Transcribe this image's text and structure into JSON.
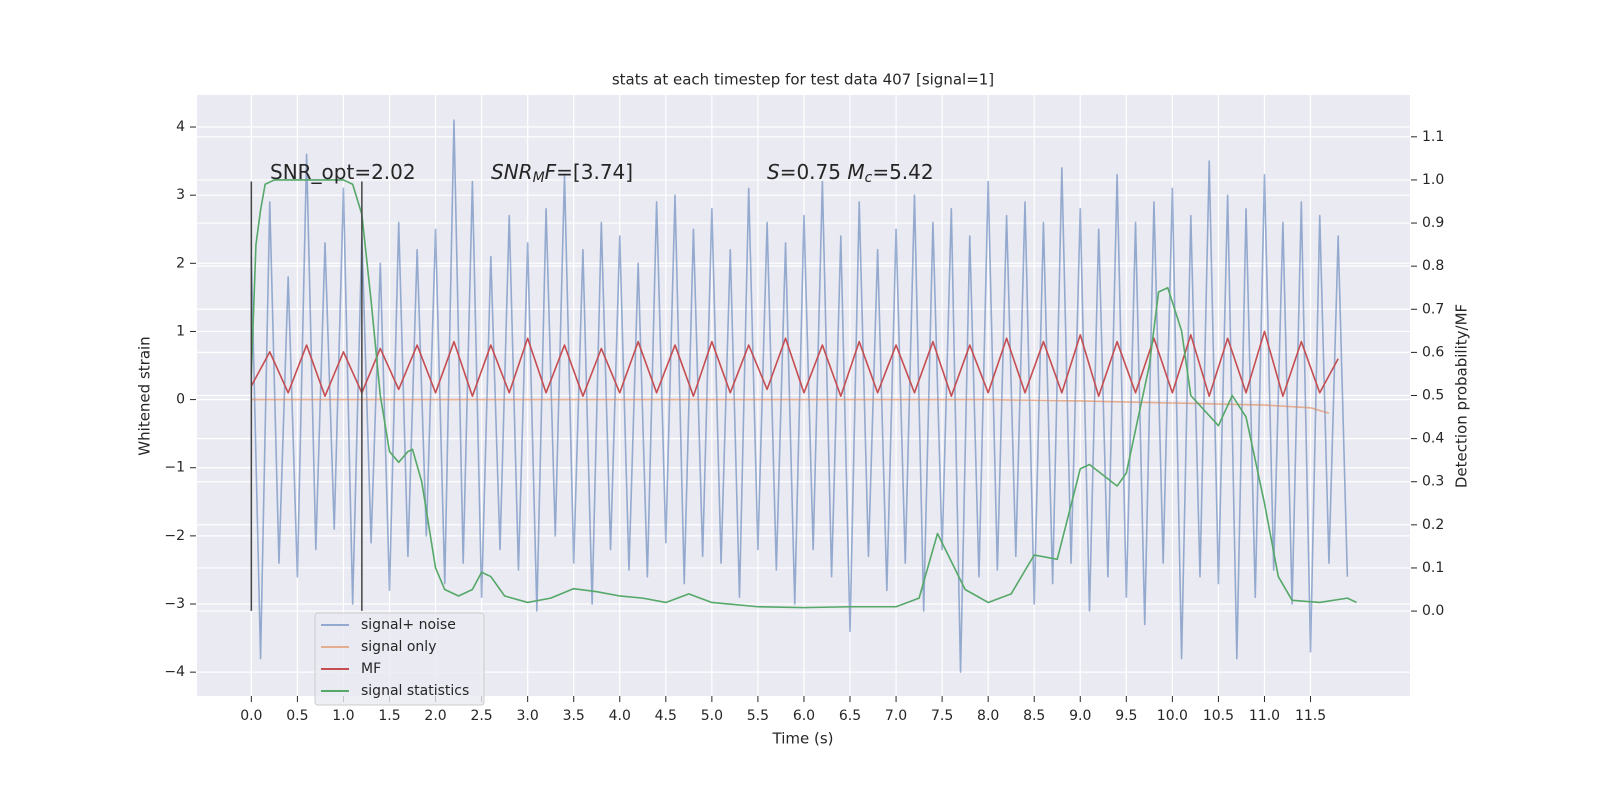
{
  "chart_data": {
    "type": "line",
    "title": "stats at each timestep for test data 407 [signal=1]",
    "xlabel": "Time (s)",
    "ylabel": "Whitened strain",
    "y2label": "Detection probability/MF",
    "xlim": [
      -0.59,
      12.58
    ],
    "ylim": [
      -4.35,
      4.47
    ],
    "y2lim": [
      -0.197,
      1.197
    ],
    "grid": true,
    "legend": "lower left",
    "xticks": [
      {
        "value": 0,
        "label": "0.0"
      },
      {
        "value": 0.5,
        "label": "0.5"
      },
      {
        "value": 1,
        "label": "1.0"
      },
      {
        "value": 1.5,
        "label": "1.5"
      },
      {
        "value": 2,
        "label": "2.0"
      },
      {
        "value": 2.5,
        "label": "2.5"
      },
      {
        "value": 3,
        "label": "3.0"
      },
      {
        "value": 3.5,
        "label": "3.5"
      },
      {
        "value": 4,
        "label": "4.0"
      },
      {
        "value": 4.5,
        "label": "4.5"
      },
      {
        "value": 5,
        "label": "5.0"
      },
      {
        "value": 5.5,
        "label": "5.5"
      },
      {
        "value": 6,
        "label": "6.0"
      },
      {
        "value": 6.5,
        "label": "6.5"
      },
      {
        "value": 7,
        "label": "7.0"
      },
      {
        "value": 7.5,
        "label": "7.5"
      },
      {
        "value": 8,
        "label": "8.0"
      },
      {
        "value": 8.5,
        "label": "8.5"
      },
      {
        "value": 9,
        "label": "9.0"
      },
      {
        "value": 9.5,
        "label": "9.5"
      },
      {
        "value": 10,
        "label": "10.0"
      },
      {
        "value": 10.5,
        "label": "10.5"
      },
      {
        "value": 11,
        "label": "11.0"
      },
      {
        "value": 11.5,
        "label": "11.5"
      }
    ],
    "yticks": [
      {
        "value": -4,
        "label": "−4"
      },
      {
        "value": -3,
        "label": "−3"
      },
      {
        "value": -2,
        "label": "−2"
      },
      {
        "value": -1,
        "label": "−1"
      },
      0,
      1,
      2,
      3,
      4
    ],
    "y2ticks": [
      {
        "value": 0,
        "label": "0.0"
      },
      {
        "value": 0.1,
        "label": "0.1"
      },
      {
        "value": 0.2,
        "label": "0.2"
      },
      {
        "value": 0.3,
        "label": "0.3"
      },
      {
        "value": 0.4,
        "label": "0.4"
      },
      {
        "value": 0.5,
        "label": "0.5"
      },
      {
        "value": 0.6,
        "label": "0.6"
      },
      {
        "value": 0.7,
        "label": "0.7"
      },
      {
        "value": 0.8,
        "label": "0.8"
      },
      {
        "value": 0.9,
        "label": "0.9"
      },
      {
        "value": 1.0,
        "label": "1.0"
      },
      {
        "value": 1.1,
        "label": "1.1"
      }
    ],
    "annotations": [
      [
        {
          "text": "SNR_opt=2.02"
        }
      ],
      [
        {
          "text": "SNR",
          "italic": true
        },
        {
          "text": "M",
          "italic": true,
          "sub": true
        },
        {
          "text": "F",
          "italic": true
        },
        {
          "text": "=[3.74]"
        }
      ],
      [
        {
          "text": "S",
          "italic": true
        },
        {
          "text": "=0.75   "
        },
        {
          "text": "M",
          "italic": true
        },
        {
          "text": "c",
          "italic": true,
          "sub": true
        },
        {
          "text": "=5.42"
        }
      ]
    ],
    "vlines": {
      "x": [
        0,
        1.2
      ],
      "ymin": -3.1,
      "ymax": 3.2,
      "color": "#444444"
    },
    "series": [
      {
        "name": "signal+ noise",
        "color": "#4c72b0",
        "opacity": 0.55,
        "x": [
          0,
          0.1,
          0.2,
          0.3,
          0.4,
          0.5,
          0.6,
          0.7,
          0.8,
          0.9,
          1,
          1.1,
          1.2,
          1.3,
          1.4,
          1.5,
          1.6,
          1.7,
          1.8,
          1.9,
          2,
          2.1,
          2.2,
          2.3,
          2.4,
          2.5,
          2.6,
          2.7,
          2.8,
          2.9,
          3,
          3.1,
          3.2,
          3.3,
          3.4,
          3.5,
          3.6,
          3.7,
          3.8,
          3.9,
          4,
          4.1,
          4.2,
          4.3,
          4.4,
          4.5,
          4.6,
          4.7,
          4.8,
          4.9,
          5,
          5.1,
          5.2,
          5.3,
          5.4,
          5.5,
          5.6,
          5.7,
          5.8,
          5.9,
          6,
          6.1,
          6.2,
          6.3,
          6.4,
          6.5,
          6.6,
          6.7,
          6.8,
          6.9,
          7,
          7.1,
          7.2,
          7.3,
          7.4,
          7.5,
          7.6,
          7.7,
          7.8,
          7.9,
          8,
          8.1,
          8.2,
          8.3,
          8.4,
          8.5,
          8.6,
          8.7,
          8.8,
          8.9,
          9,
          9.1,
          9.2,
          9.3,
          9.4,
          9.5,
          9.6,
          9.7,
          9.8,
          9.9,
          10,
          10.1,
          10.2,
          10.3,
          10.4,
          10.5,
          10.6,
          10.7,
          10.8,
          10.9,
          11,
          11.1,
          11.2,
          11.3,
          11.4,
          11.5,
          11.6,
          11.7,
          11.8,
          11.9
        ],
        "values": [
          2.1,
          -3.8,
          2.9,
          -2.4,
          1.8,
          -2.6,
          3.6,
          -2.2,
          2.3,
          -1.9,
          3.1,
          -3.0,
          2.4,
          -2.1,
          2.0,
          -2.8,
          2.6,
          -2.3,
          2.2,
          -2.0,
          2.5,
          -2.7,
          4.1,
          -2.4,
          3.2,
          -2.9,
          2.1,
          -2.2,
          2.7,
          -2.5,
          2.3,
          -3.1,
          2.8,
          -2.0,
          3.3,
          -2.4,
          2.2,
          -3.0,
          2.6,
          -2.2,
          2.4,
          -2.5,
          2.0,
          -2.6,
          2.9,
          -2.1,
          3.0,
          -2.7,
          2.5,
          -2.3,
          2.8,
          -2.4,
          2.2,
          -2.9,
          3.1,
          -2.2,
          2.6,
          -2.5,
          2.3,
          -3.0,
          2.7,
          -2.2,
          3.2,
          -2.6,
          2.4,
          -3.4,
          2.9,
          -2.3,
          2.2,
          -2.8,
          2.5,
          -2.4,
          3.0,
          -3.1,
          2.6,
          -2.2,
          2.8,
          -4.0,
          2.4,
          -2.6,
          3.2,
          -2.5,
          2.7,
          -2.3,
          2.9,
          -3.0,
          2.6,
          -2.7,
          3.4,
          -2.4,
          2.8,
          -3.1,
          2.5,
          -2.6,
          3.3,
          -2.9,
          2.6,
          -3.3,
          2.9,
          -2.4,
          3.1,
          -3.8,
          2.7,
          -2.6,
          3.5,
          -2.7,
          3.0,
          -3.8,
          2.8,
          -2.9,
          3.3,
          -2.5,
          2.6,
          -3.0,
          2.9,
          -3.7,
          2.7,
          -2.4,
          2.4,
          -2.6
        ]
      },
      {
        "name": "signal only",
        "color": "#dd8452",
        "opacity": 0.6,
        "x": [
          0,
          2,
          4,
          6,
          8,
          9,
          10,
          11,
          11.5,
          11.7
        ],
        "values": [
          0,
          0,
          0,
          0,
          0,
          -0.02,
          -0.05,
          -0.08,
          -0.12,
          -0.2
        ]
      },
      {
        "name": "MF",
        "color": "#c44e52",
        "opacity": 1,
        "x": [
          0,
          0.2,
          0.4,
          0.6,
          0.8,
          1,
          1.2,
          1.4,
          1.6,
          1.8,
          2,
          2.2,
          2.4,
          2.6,
          2.8,
          3,
          3.2,
          3.4,
          3.6,
          3.8,
          4,
          4.2,
          4.4,
          4.6,
          4.8,
          5,
          5.2,
          5.4,
          5.6,
          5.8,
          6,
          6.2,
          6.4,
          6.6,
          6.8,
          7,
          7.2,
          7.4,
          7.6,
          7.8,
          8,
          8.2,
          8.4,
          8.6,
          8.8,
          9,
          9.2,
          9.4,
          9.6,
          9.8,
          10,
          10.2,
          10.4,
          10.6,
          10.8,
          11,
          11.2,
          11.4,
          11.6,
          11.8
        ],
        "values": [
          0.2,
          0.7,
          0.1,
          0.8,
          0.05,
          0.7,
          0.1,
          0.75,
          0.15,
          0.8,
          0.1,
          0.85,
          0.05,
          0.8,
          0.1,
          0.9,
          0.1,
          0.8,
          0.05,
          0.75,
          0.1,
          0.85,
          0.1,
          0.8,
          0.05,
          0.85,
          0.1,
          0.8,
          0.15,
          0.9,
          0.1,
          0.8,
          0.05,
          0.85,
          0.1,
          0.8,
          0.1,
          0.85,
          0.05,
          0.8,
          0.1,
          0.9,
          0.1,
          0.85,
          0.1,
          0.95,
          0.05,
          0.85,
          0.1,
          0.9,
          0.1,
          0.95,
          0.05,
          0.9,
          0.1,
          1.0,
          0.05,
          0.85,
          0.1,
          0.6
        ]
      },
      {
        "name": "signal statistics",
        "color": "#55a868",
        "opacity": 1,
        "axis": "y2",
        "x": [
          0,
          0.05,
          0.1,
          0.15,
          0.25,
          0.5,
          0.8,
          1,
          1.1,
          1.2,
          1.3,
          1.4,
          1.5,
          1.6,
          1.7,
          1.75,
          1.85,
          2,
          2.1,
          2.25,
          2.4,
          2.5,
          2.6,
          2.75,
          3,
          3.25,
          3.5,
          3.75,
          4,
          4.25,
          4.5,
          4.75,
          5,
          5.5,
          6,
          6.5,
          7,
          7.25,
          7.45,
          7.75,
          8,
          8.25,
          8.5,
          8.75,
          9,
          9.1,
          9.4,
          9.5,
          9.75,
          9.85,
          9.95,
          10.1,
          10.2,
          10.5,
          10.65,
          10.8,
          11,
          11.15,
          11.3,
          11.6,
          11.9,
          12
        ],
        "values": [
          0.55,
          0.85,
          0.93,
          0.99,
          1.0,
          1.0,
          1.0,
          1.0,
          0.99,
          0.92,
          0.72,
          0.5,
          0.37,
          0.345,
          0.37,
          0.375,
          0.3,
          0.1,
          0.05,
          0.035,
          0.05,
          0.09,
          0.08,
          0.035,
          0.02,
          0.03,
          0.052,
          0.045,
          0.035,
          0.03,
          0.02,
          0.04,
          0.02,
          0.01,
          0.008,
          0.01,
          0.01,
          0.03,
          0.18,
          0.05,
          0.02,
          0.04,
          0.13,
          0.12,
          0.33,
          0.34,
          0.29,
          0.32,
          0.57,
          0.74,
          0.75,
          0.65,
          0.5,
          0.43,
          0.5,
          0.45,
          0.25,
          0.08,
          0.025,
          0.02,
          0.03,
          0.02
        ]
      }
    ]
  }
}
